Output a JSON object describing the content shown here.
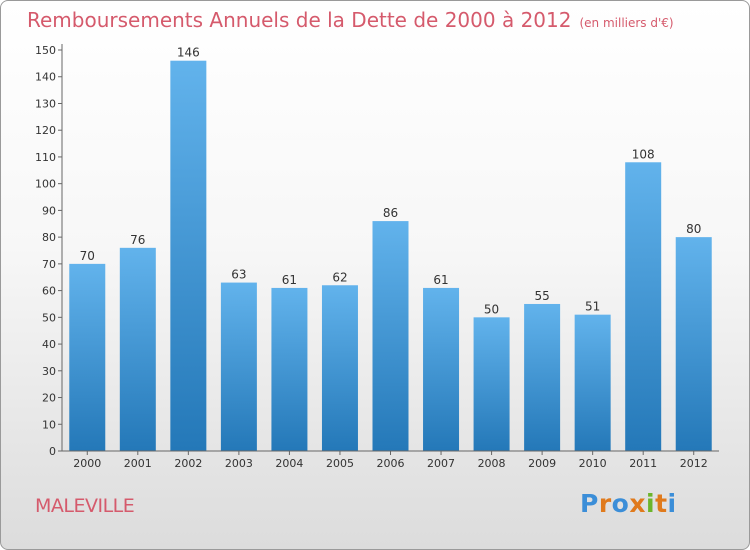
{
  "header": {
    "title": "Remboursements Annuels de la Dette de 2000 à 2012",
    "subtitle": "(en milliers d'€)"
  },
  "footer": {
    "city": "MALEVILLE",
    "brand_letters": [
      "P",
      "r",
      "o",
      "x",
      "i",
      "t",
      "i"
    ],
    "brand_colors": [
      "#3b8ed8",
      "#e07a1c",
      "#3b8ed8",
      "#e07a1c",
      "#6cb52b",
      "#e07a1c",
      "#3b8ed8"
    ]
  },
  "colors": {
    "bar_light": "#62b3ec",
    "bar_dark": "#2478b8",
    "title": "#d55a6c"
  },
  "chart_data": {
    "type": "bar",
    "categories": [
      "2000",
      "2001",
      "2002",
      "2003",
      "2004",
      "2005",
      "2006",
      "2007",
      "2008",
      "2009",
      "2010",
      "2011",
      "2012"
    ],
    "values": [
      70,
      76,
      146,
      63,
      61,
      62,
      86,
      61,
      50,
      55,
      51,
      108,
      80
    ],
    "ylim": [
      0,
      150
    ],
    "yticks": [
      0,
      10,
      20,
      30,
      40,
      50,
      60,
      70,
      80,
      90,
      100,
      110,
      120,
      130,
      140,
      150
    ],
    "grid": false,
    "legend": "none"
  }
}
